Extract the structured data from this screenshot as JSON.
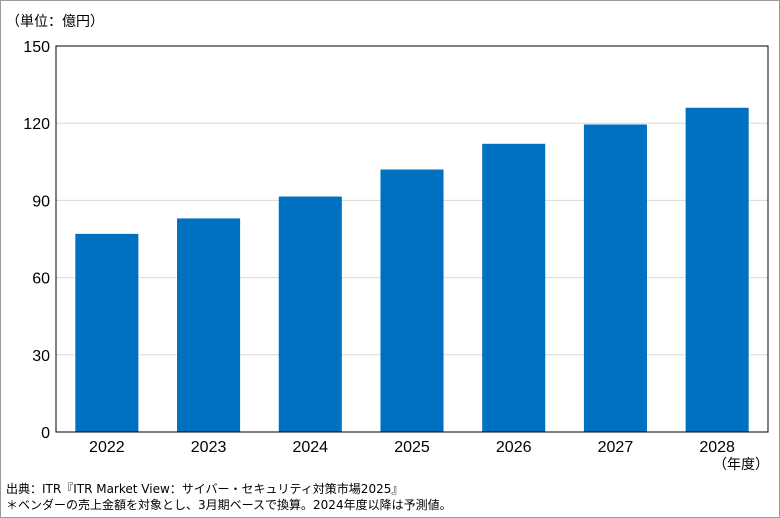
{
  "chart_data": {
    "type": "bar",
    "title": "",
    "unit_label": "（単位：億円）",
    "xlabel": "（年度）",
    "ylabel": "",
    "categories": [
      "2022",
      "2023",
      "2024",
      "2025",
      "2026",
      "2027",
      "2028"
    ],
    "values": [
      77,
      83,
      91.5,
      102,
      112,
      119.5,
      126
    ],
    "ylim": [
      0,
      150
    ],
    "yticks": [
      0,
      30,
      60,
      90,
      120,
      150
    ],
    "grid": true,
    "legend": "none",
    "bar_color": "#0070C0",
    "gridline_color": "#d9d9d9"
  },
  "notes": {
    "source": "出典：ITR『ITR Market View：サイバー・セキュリティ対策市場2025』",
    "footnote": "＊ベンダーの売上金額を対象とし、3月期ベースで換算。2024年度以降は予測値。"
  }
}
